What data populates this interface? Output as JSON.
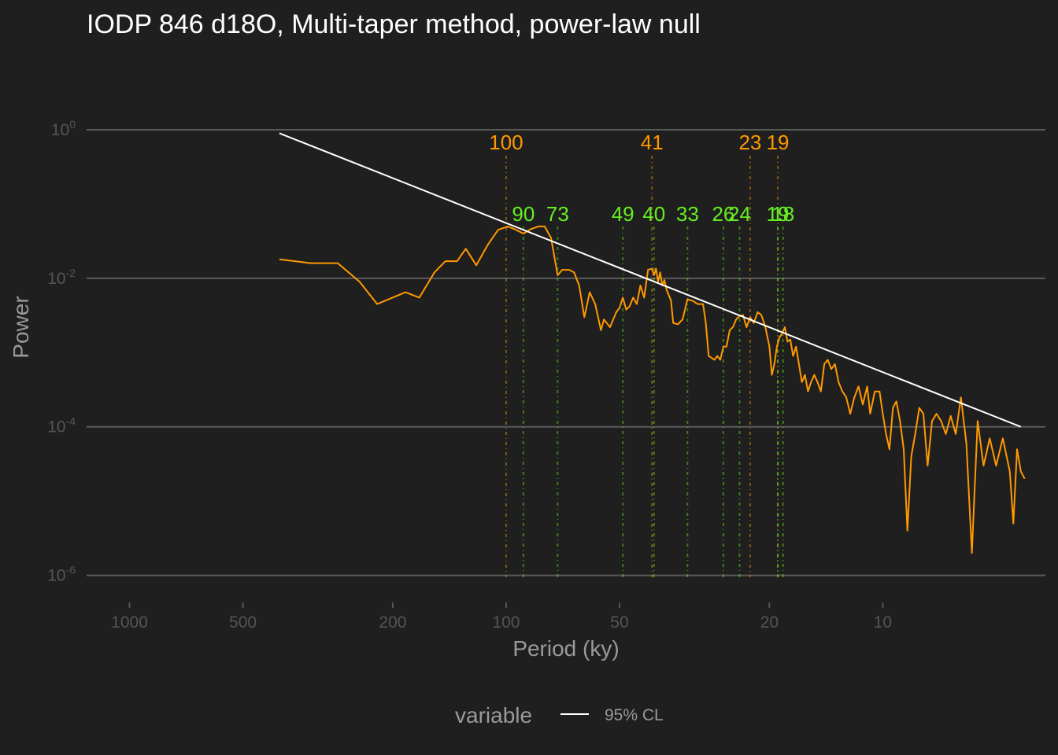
{
  "chart_data": {
    "type": "line",
    "title": "IODP 846 d18O, Multi-taper method, power-law null",
    "xlabel": "Period (ky)",
    "ylabel": "Power",
    "x_scale": "log-reversed",
    "y_scale": "log",
    "xlim": [
      1300,
      3.7
    ],
    "ylim": [
      5e-07,
      3
    ],
    "x_ticks": [
      {
        "value": 1000,
        "label": "1000"
      },
      {
        "value": 500,
        "label": "500"
      },
      {
        "value": 200,
        "label": "200"
      },
      {
        "value": 100,
        "label": "100"
      },
      {
        "value": 50,
        "label": "50"
      },
      {
        "value": 20,
        "label": "20"
      },
      {
        "value": 10,
        "label": "10"
      }
    ],
    "y_ticks": [
      {
        "value": 1,
        "base": "10",
        "exp": "0"
      },
      {
        "value": 0.01,
        "base": "10",
        "exp": "-2"
      },
      {
        "value": 0.0001,
        "base": "10",
        "exp": "-4"
      },
      {
        "value": 1e-06,
        "base": "10",
        "exp": "-6"
      }
    ],
    "grid": true,
    "legend": {
      "position": "bottom",
      "title": "variable",
      "entries": [
        {
          "label": "95% CL",
          "color": "#ffffff"
        }
      ]
    },
    "series": [
      {
        "color": "#ff9900",
        "points": [
          [
            400,
            0.018
          ],
          [
            330,
            0.016
          ],
          [
            280,
            0.016
          ],
          [
            245,
            0.009
          ],
          [
            220,
            0.0045
          ],
          [
            185,
            0.0065
          ],
          [
            170,
            0.0055
          ],
          [
            155,
            0.012
          ],
          [
            145,
            0.017
          ],
          [
            135,
            0.017
          ],
          [
            128,
            0.025
          ],
          [
            120,
            0.015
          ],
          [
            112,
            0.028
          ],
          [
            105,
            0.045
          ],
          [
            99,
            0.05
          ],
          [
            95,
            0.046
          ],
          [
            90,
            0.04
          ],
          [
            86,
            0.046
          ],
          [
            82,
            0.05
          ],
          [
            79,
            0.05
          ],
          [
            76,
            0.035
          ],
          [
            73,
            0.011
          ],
          [
            71,
            0.013
          ],
          [
            68,
            0.013
          ],
          [
            66,
            0.012
          ],
          [
            64,
            0.008
          ],
          [
            62,
            0.003
          ],
          [
            60,
            0.0065
          ],
          [
            58,
            0.0045
          ],
          [
            56,
            0.002
          ],
          [
            55,
            0.0028
          ],
          [
            53,
            0.0022
          ],
          [
            51,
            0.0035
          ],
          [
            50,
            0.004
          ],
          [
            49,
            0.0055
          ],
          [
            48,
            0.0038
          ],
          [
            47,
            0.0042
          ],
          [
            46,
            0.0055
          ],
          [
            45,
            0.0045
          ],
          [
            44,
            0.008
          ],
          [
            43,
            0.0055
          ],
          [
            42,
            0.013
          ],
          [
            41,
            0.0135
          ],
          [
            40.5,
            0.011
          ],
          [
            40,
            0.0135
          ],
          [
            39.5,
            0.009
          ],
          [
            39,
            0.012
          ],
          [
            38.5,
            0.008
          ],
          [
            38,
            0.0095
          ],
          [
            37.5,
            0.007
          ],
          [
            36.5,
            0.005
          ],
          [
            36,
            0.0025
          ],
          [
            35,
            0.0024
          ],
          [
            34,
            0.0028
          ],
          [
            33,
            0.0052
          ],
          [
            32,
            0.005
          ],
          [
            31,
            0.0045
          ],
          [
            30,
            0.0045
          ],
          [
            29.5,
            0.0025
          ],
          [
            29,
            0.0009
          ],
          [
            28,
            0.0008
          ],
          [
            27.5,
            0.0009
          ],
          [
            27,
            0.0008
          ],
          [
            26.5,
            0.0012
          ],
          [
            26,
            0.0012
          ],
          [
            25.5,
            0.002
          ],
          [
            25,
            0.0022
          ],
          [
            24.5,
            0.0028
          ],
          [
            24,
            0.0031
          ],
          [
            23.5,
            0.0032
          ],
          [
            23,
            0.0022
          ],
          [
            22.5,
            0.003
          ],
          [
            22,
            0.0025
          ],
          [
            21.5,
            0.0035
          ],
          [
            21,
            0.0032
          ],
          [
            20.5,
            0.0022
          ],
          [
            20,
            0.0012
          ],
          [
            19.7,
            0.0005
          ],
          [
            19.4,
            0.0007
          ],
          [
            19.1,
            0.0012
          ],
          [
            18.8,
            0.0016
          ],
          [
            18.5,
            0.0018
          ],
          [
            18.2,
            0.0022
          ],
          [
            17.9,
            0.0014
          ],
          [
            17.6,
            0.0015
          ],
          [
            17.3,
            0.0009
          ],
          [
            17,
            0.0012
          ],
          [
            16.7,
            0.0007
          ],
          [
            16.4,
            0.0004
          ],
          [
            16.1,
            0.0005
          ],
          [
            15.8,
            0.0003
          ],
          [
            15.5,
            0.0004
          ],
          [
            15.2,
            0.0005
          ],
          [
            14.9,
            0.0004
          ],
          [
            14.6,
            0.0003
          ],
          [
            14.3,
            0.0007
          ],
          [
            14,
            0.0008
          ],
          [
            13.7,
            0.0006
          ],
          [
            13.4,
            0.0007
          ],
          [
            13.1,
            0.0004
          ],
          [
            12.8,
            0.0003
          ],
          [
            12.5,
            0.00025
          ],
          [
            12.2,
            0.00015
          ],
          [
            11.9,
            0.00025
          ],
          [
            11.6,
            0.00035
          ],
          [
            11.3,
            0.0002
          ],
          [
            11.0,
            0.00035
          ],
          [
            10.8,
            0.00015
          ],
          [
            10.5,
            0.0003
          ],
          [
            10.2,
            0.0003
          ],
          [
            10.0,
            0.00015
          ],
          [
            9.8,
            8e-05
          ],
          [
            9.6,
            5e-05
          ],
          [
            9.4,
            0.00018
          ],
          [
            9.2,
            0.00022
          ],
          [
            9.0,
            0.00012
          ],
          [
            8.8,
            5e-05
          ],
          [
            8.6,
            4e-06
          ],
          [
            8.4,
            4e-05
          ],
          [
            8.2,
            8e-05
          ],
          [
            8.0,
            0.00018
          ],
          [
            7.8,
            0.00015
          ],
          [
            7.6,
            3e-05
          ],
          [
            7.4,
            0.00012
          ],
          [
            7.2,
            0.00015
          ],
          [
            7.0,
            0.00012
          ],
          [
            6.8,
            8e-05
          ],
          [
            6.6,
            0.00014
          ],
          [
            6.4,
            8e-05
          ],
          [
            6.2,
            0.00025
          ],
          [
            6.0,
            6e-05
          ],
          [
            5.8,
            2e-06
          ],
          [
            5.6,
            0.00012
          ],
          [
            5.4,
            3e-05
          ],
          [
            5.2,
            7e-05
          ],
          [
            5.0,
            3e-05
          ],
          [
            4.8,
            7e-05
          ],
          [
            4.6,
            2.5e-05
          ],
          [
            4.5,
            5e-06
          ],
          [
            4.4,
            5e-05
          ],
          [
            4.3,
            2.5e-05
          ],
          [
            4.2,
            2e-05
          ]
        ]
      },
      {
        "name": "95% CL",
        "color": "#ffffff",
        "points": [
          [
            400,
            0.9
          ],
          [
            4.3,
            0.0001
          ]
        ]
      }
    ],
    "peaks": [
      {
        "label": "100",
        "period": 100,
        "color": "#ff9900",
        "tier": "upper"
      },
      {
        "label": "41",
        "period": 41,
        "color": "#ff9900",
        "tier": "upper"
      },
      {
        "label": "23",
        "period": 22.5,
        "color": "#ff9900",
        "tier": "upper"
      },
      {
        "label": "19",
        "period": 19,
        "color": "#ff9900",
        "tier": "upper"
      },
      {
        "label": "90",
        "period": 90,
        "color": "#66ee22",
        "tier": "lower"
      },
      {
        "label": "73",
        "period": 73,
        "color": "#66ee22",
        "tier": "lower"
      },
      {
        "label": "49",
        "period": 49,
        "color": "#66ee22",
        "tier": "lower"
      },
      {
        "label": "40",
        "period": 40.5,
        "color": "#66ee22",
        "tier": "lower"
      },
      {
        "label": "33",
        "period": 33,
        "color": "#66ee22",
        "tier": "lower"
      },
      {
        "label": "26",
        "period": 26.5,
        "color": "#66ee22",
        "tier": "lower"
      },
      {
        "label": "24",
        "period": 24,
        "color": "#66ee22",
        "tier": "lower"
      },
      {
        "label": "19",
        "period": 19,
        "color": "#66ee22",
        "tier": "lower"
      },
      {
        "label": "18",
        "period": 18.4,
        "color": "#66ee22",
        "tier": "lower"
      }
    ]
  }
}
